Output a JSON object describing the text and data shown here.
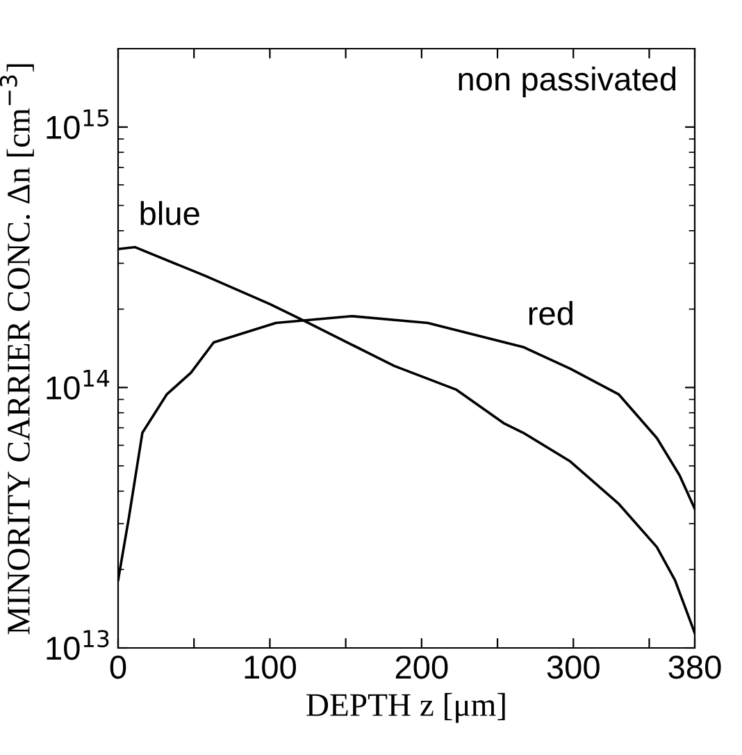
{
  "chart_data": {
    "type": "line",
    "xlabel": "DEPTH z [μm]",
    "ylabel": "MINORITY CARRIER CONC. Δn [cm$^{−3}$]",
    "annotations": [
      "non passivated"
    ],
    "log": "y",
    "xlim": [
      0,
      380
    ],
    "xticks": [
      0,
      {
        "value": 50,
        "label": null
      },
      100,
      {
        "value": 150,
        "label": null
      },
      200,
      {
        "value": 250,
        "label": null
      },
      300,
      {
        "value": 350,
        "label": null
      },
      380
    ],
    "ylim": [
      10000000000000.0,
      2000000000000000.0
    ],
    "yticks": [
      {
        "value": 10000000000000.0,
        "label": "10$^{13}$"
      },
      {
        "value": 100000000000000.0,
        "label": "10$^{14}$"
      },
      {
        "value": 1000000000000000.0,
        "label": "10$^{15}$"
      }
    ],
    "grid": false,
    "legend": false,
    "series": [
      {
        "name": "blue",
        "color": "#000000",
        "x": [
          0,
          11,
          57,
          100,
          123,
          154,
          182,
          223,
          254,
          267,
          298,
          330,
          355,
          367,
          380
        ],
        "values": [
          340000000000000.0,
          346000000000000.0,
          269000000000000.0,
          209000000000000.0,
          180000000000000.0,
          146000000000000.0,
          121000000000000.0,
          98000000000000.0,
          73000000000000.0,
          67000000000000.0,
          52000000000000.0,
          35700000000000.0,
          24400000000000.0,
          18200000000000.0,
          11400000000000.0
        ]
      },
      {
        "name": "red",
        "color": "#000000",
        "x": [
          0,
          7,
          16,
          32,
          48,
          63,
          104,
          154,
          204,
          267,
          298,
          330,
          355,
          370,
          380
        ],
        "values": [
          18200000000000.0,
          31400000000000.0,
          67000000000000.0,
          94000000000000.0,
          114000000000000.0,
          149000000000000.0,
          177000000000000.0,
          188000000000000.0,
          177000000000000.0,
          143000000000000.0,
          118000000000000.0,
          94000000000000.0,
          64000000000000.0,
          46000000000000.0,
          34200000000000.0
        ]
      }
    ]
  }
}
